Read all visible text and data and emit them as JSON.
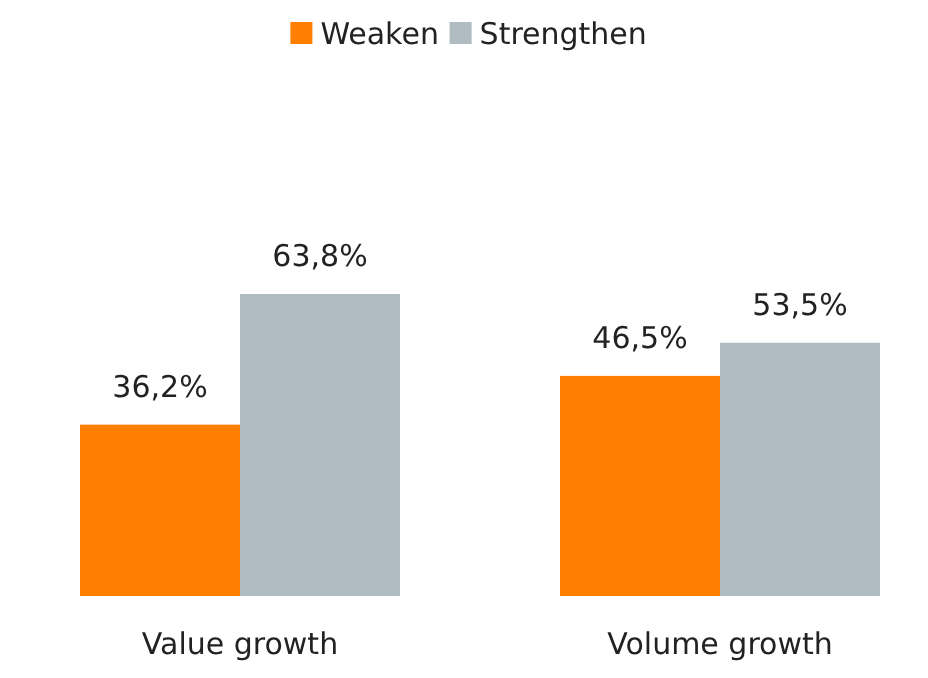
{
  "chart_data": {
    "type": "bar",
    "categories": [
      "Value growth",
      "Volume growth"
    ],
    "series": [
      {
        "name": "Weaken",
        "color": "#ff7f00",
        "values": [
          36.2,
          46.5
        ],
        "value_labels": [
          "36,2%",
          "46,5%"
        ]
      },
      {
        "name": "Strengthen",
        "color": "#b0bcc2",
        "values": [
          63.8,
          53.5
        ],
        "value_labels": [
          "63,8%",
          "53,5%"
        ]
      }
    ],
    "legend": "top"
  }
}
